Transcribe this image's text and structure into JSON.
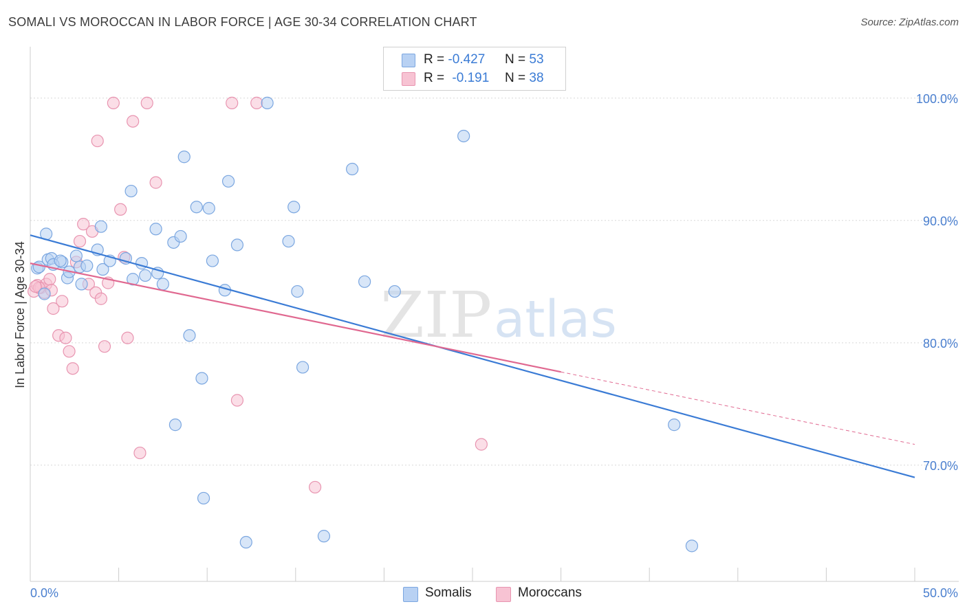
{
  "header": {
    "title": "SOMALI VS MOROCCAN IN LABOR FORCE | AGE 30-34 CORRELATION CHART",
    "source": "Source: ZipAtlas.com"
  },
  "legend": {
    "rows": [
      {
        "r_label": "R =",
        "r_value": "-0.427",
        "n_label": "N =",
        "n_value": "53"
      },
      {
        "r_label": "R =",
        "r_value": "-0.191",
        "n_label": "N =",
        "n_value": "38"
      }
    ]
  },
  "bottom_legend": [
    "Somalis",
    "Moroccans"
  ],
  "watermark": {
    "zip": "ZIP",
    "atlas": "atlas"
  },
  "colors": {
    "blue_fill": "#b8d1f3",
    "blue_stroke": "#7aa6e0",
    "blue_line": "#3a7bd5",
    "pink_fill": "#f7c3d3",
    "pink_stroke": "#e894b0",
    "pink_line": "#e06890",
    "tick_label": "#4a7fcf",
    "grid": "#d8d8d8"
  },
  "chart_data": {
    "type": "scatter",
    "title": "SOMALI VS MOROCCAN IN LABOR FORCE | AGE 30-34 CORRELATION CHART",
    "xlabel": "",
    "ylabel": "In Labor Force | Age 30-34",
    "xlim": [
      0,
      50
    ],
    "ylim": [
      60.5,
      104.2
    ],
    "x_tick_labels": [
      {
        "value": 0,
        "label": "0.0%"
      },
      {
        "value": 50,
        "label": "50.0%"
      }
    ],
    "y_tick_labels": [
      {
        "value": 100,
        "label": "100.0%"
      },
      {
        "value": 90,
        "label": "90.0%"
      },
      {
        "value": 80,
        "label": "80.0%"
      },
      {
        "value": 70,
        "label": "70.0%"
      }
    ],
    "grid": true,
    "legend_position": "top-center",
    "series": [
      {
        "name": "Somalis",
        "r": -0.427,
        "n": 53,
        "trend": {
          "x0": 0,
          "y0": 88.8,
          "x1": 50,
          "y1": 69.0,
          "x_solid_end": 50
        },
        "points": [
          [
            0.4,
            86.1
          ],
          [
            1.0,
            86.8
          ],
          [
            0.9,
            88.9
          ],
          [
            0.8,
            84.0
          ],
          [
            1.2,
            86.9
          ],
          [
            1.8,
            86.6
          ],
          [
            2.1,
            85.3
          ],
          [
            2.2,
            85.8
          ],
          [
            2.6,
            87.1
          ],
          [
            2.8,
            86.2
          ],
          [
            2.9,
            84.8
          ],
          [
            3.2,
            86.3
          ],
          [
            3.8,
            87.6
          ],
          [
            4.1,
            86.0
          ],
          [
            4.0,
            89.5
          ],
          [
            4.5,
            86.7
          ],
          [
            5.4,
            86.9
          ],
          [
            5.8,
            85.2
          ],
          [
            6.5,
            85.5
          ],
          [
            6.3,
            86.5
          ],
          [
            7.1,
            89.3
          ],
          [
            7.2,
            85.7
          ],
          [
            7.5,
            84.8
          ],
          [
            8.1,
            88.2
          ],
          [
            8.2,
            73.3
          ],
          [
            8.5,
            88.7
          ],
          [
            8.7,
            95.2
          ],
          [
            9.0,
            80.6
          ],
          [
            9.7,
            77.1
          ],
          [
            9.4,
            91.1
          ],
          [
            10.1,
            91.0
          ],
          [
            10.3,
            86.7
          ],
          [
            11.0,
            84.3
          ],
          [
            11.2,
            93.2
          ],
          [
            11.7,
            88.0
          ],
          [
            9.8,
            67.3
          ],
          [
            12.2,
            63.7
          ],
          [
            13.4,
            99.6
          ],
          [
            14.6,
            88.3
          ],
          [
            14.9,
            91.1
          ],
          [
            15.1,
            84.2
          ],
          [
            15.4,
            78.0
          ],
          [
            16.6,
            64.2
          ],
          [
            18.2,
            94.2
          ],
          [
            18.9,
            85.0
          ],
          [
            20.6,
            84.2
          ],
          [
            24.5,
            96.9
          ],
          [
            36.4,
            73.3
          ],
          [
            37.4,
            63.4
          ],
          [
            0.5,
            86.2
          ],
          [
            1.3,
            86.4
          ],
          [
            5.7,
            92.4
          ],
          [
            1.7,
            86.7
          ]
        ]
      },
      {
        "name": "Moroccans",
        "r": -0.191,
        "n": 38,
        "trend": {
          "x0": 0,
          "y0": 86.5,
          "x1": 50,
          "y1": 71.7,
          "x_solid_end": 30
        },
        "points": [
          [
            0.2,
            84.2
          ],
          [
            0.4,
            84.7
          ],
          [
            0.6,
            84.5
          ],
          [
            0.8,
            84.1
          ],
          [
            0.9,
            84.8
          ],
          [
            1.1,
            85.2
          ],
          [
            1.3,
            82.8
          ],
          [
            1.6,
            80.6
          ],
          [
            1.8,
            83.4
          ],
          [
            2.0,
            80.4
          ],
          [
            2.2,
            79.3
          ],
          [
            2.4,
            77.9
          ],
          [
            2.6,
            86.6
          ],
          [
            2.8,
            88.3
          ],
          [
            3.0,
            89.7
          ],
          [
            3.3,
            84.8
          ],
          [
            3.5,
            89.1
          ],
          [
            3.7,
            84.1
          ],
          [
            3.8,
            96.5
          ],
          [
            4.0,
            83.6
          ],
          [
            4.2,
            79.7
          ],
          [
            4.4,
            84.9
          ],
          [
            4.7,
            99.6
          ],
          [
            5.1,
            90.9
          ],
          [
            5.3,
            87.0
          ],
          [
            5.5,
            80.4
          ],
          [
            5.8,
            98.1
          ],
          [
            6.2,
            71.0
          ],
          [
            6.6,
            99.6
          ],
          [
            7.1,
            93.1
          ],
          [
            11.4,
            99.6
          ],
          [
            11.7,
            75.3
          ],
          [
            12.8,
            99.6
          ],
          [
            16.1,
            68.2
          ],
          [
            25.5,
            71.7
          ],
          [
            0.5,
            84.5
          ],
          [
            1.2,
            84.3
          ],
          [
            0.3,
            84.6
          ]
        ]
      }
    ]
  }
}
